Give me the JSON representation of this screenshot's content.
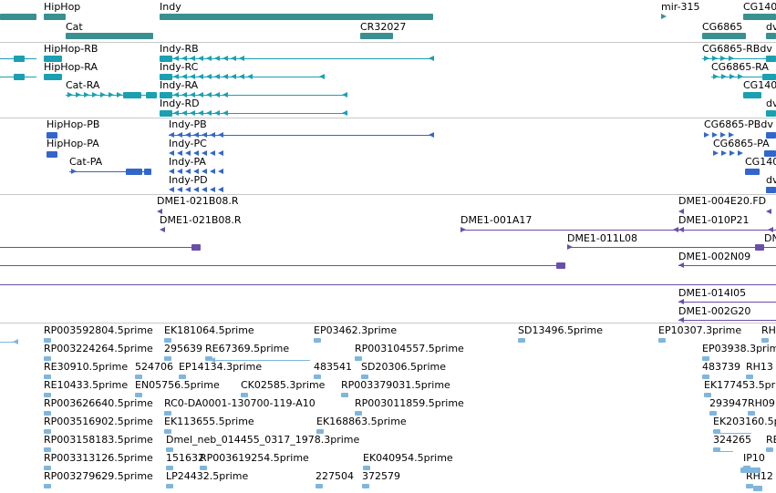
{
  "colors": {
    "gene": "#3a9090",
    "transcript": "#1aa0b0",
    "protein": "#3366cc",
    "clone": "#6a4fa8",
    "est": "#7fb6dc",
    "separator": "#c8c8c8"
  },
  "gene_track": {
    "labels": [
      {
        "id": "hiphop",
        "text": "HipHop"
      },
      {
        "id": "cat",
        "text": "Cat"
      },
      {
        "id": "indy",
        "text": "Indy"
      },
      {
        "id": "cr32027",
        "text": "CR32027"
      },
      {
        "id": "mir315",
        "text": "mir-315"
      },
      {
        "id": "cg6865",
        "text": "CG6865"
      },
      {
        "id": "cg140a",
        "text": "CG140"
      },
      {
        "id": "dv",
        "text": "dv"
      }
    ]
  },
  "transcript_track": {
    "labels": [
      {
        "id": "hiphop_rb",
        "text": "HipHop-RB"
      },
      {
        "id": "hiphop_ra",
        "text": "HipHop-RA"
      },
      {
        "id": "cat_ra",
        "text": "Cat-RA"
      },
      {
        "id": "indy_rb",
        "text": "Indy-RB"
      },
      {
        "id": "indy_rc",
        "text": "Indy-RC"
      },
      {
        "id": "indy_ra",
        "text": "Indy-RA"
      },
      {
        "id": "indy_rd",
        "text": "Indy-RD"
      },
      {
        "id": "cg6865_rb",
        "text": "CG6865-RBdv"
      },
      {
        "id": "cg6865_ra",
        "text": "CG6865-RA"
      },
      {
        "id": "cg140b",
        "text": "CG140"
      },
      {
        "id": "dv2",
        "text": "dv"
      }
    ]
  },
  "protein_track": {
    "labels": [
      {
        "id": "hiphop_pb",
        "text": "HipHop-PB"
      },
      {
        "id": "hiphop_pa",
        "text": "HipHop-PA"
      },
      {
        "id": "cat_pa",
        "text": "Cat-PA"
      },
      {
        "id": "indy_pb",
        "text": "Indy-PB"
      },
      {
        "id": "indy_pc",
        "text": "Indy-PC"
      },
      {
        "id": "indy_pa",
        "text": "Indy-PA"
      },
      {
        "id": "indy_pd",
        "text": "Indy-PD"
      },
      {
        "id": "cg6865_pb",
        "text": "CG6865-PBdv"
      },
      {
        "id": "cg6865_pa",
        "text": "CG6865-PA"
      },
      {
        "id": "cg140c",
        "text": "CG140"
      },
      {
        "id": "dv3",
        "text": "dv"
      }
    ]
  },
  "clone_track": {
    "labels": [
      {
        "id": "c1",
        "text": "DME1-021B08.R"
      },
      {
        "id": "c2",
        "text": "DME1-021B08.R"
      },
      {
        "id": "c3",
        "text": "DME1-001A17"
      },
      {
        "id": "c4",
        "text": "DME1-004E20.FD"
      },
      {
        "id": "c5",
        "text": "DME1-010P21"
      },
      {
        "id": "c6",
        "text": "DME1-011L08"
      },
      {
        "id": "c7",
        "text": "DN"
      },
      {
        "id": "c8",
        "text": "DME1-002N09"
      },
      {
        "id": "c9",
        "text": "DME1-014I05"
      },
      {
        "id": "c10",
        "text": "DME1-002G20"
      }
    ]
  },
  "est_track": {
    "labels": [
      {
        "id": "e1",
        "text": "RP003592804.5prime"
      },
      {
        "id": "e2",
        "text": "EK181064.5prime"
      },
      {
        "id": "e3",
        "text": "EP03462.3prime"
      },
      {
        "id": "e4",
        "text": "SD13496.5prime"
      },
      {
        "id": "e5",
        "text": "EP10307.3prime"
      },
      {
        "id": "e6",
        "text": "RH17"
      },
      {
        "id": "e7",
        "text": "RP003224264.5prime"
      },
      {
        "id": "e8",
        "text": "295639"
      },
      {
        "id": "e9",
        "text": "RE67369.5prime"
      },
      {
        "id": "e10",
        "text": "RP003104557.5prime"
      },
      {
        "id": "e11",
        "text": "EP03938.3prime"
      },
      {
        "id": "e12",
        "text": "RE30910.5prime"
      },
      {
        "id": "e13",
        "text": "524706"
      },
      {
        "id": "e14",
        "text": "EP14134.3prime"
      },
      {
        "id": "e15",
        "text": "483541"
      },
      {
        "id": "e16",
        "text": "SD20306.5prime"
      },
      {
        "id": "e17",
        "text": "483739"
      },
      {
        "id": "e18",
        "text": "RH13"
      },
      {
        "id": "e19",
        "text": "RE10433.5prime"
      },
      {
        "id": "e20",
        "text": "EN05756.5prime"
      },
      {
        "id": "e21",
        "text": "CK02585.3prime"
      },
      {
        "id": "e22",
        "text": "RP003379031.5prime"
      },
      {
        "id": "e23",
        "text": "EK177453.5prime"
      },
      {
        "id": "e24",
        "text": "RP003626640.5prime"
      },
      {
        "id": "e25",
        "text": "RC0-DA0001-130700-119-A10"
      },
      {
        "id": "e26",
        "text": "RP003011859.5prime"
      },
      {
        "id": "e27",
        "text": "293947"
      },
      {
        "id": "e28",
        "text": "RH09"
      },
      {
        "id": "e29",
        "text": "RP003516902.5prime"
      },
      {
        "id": "e30",
        "text": "EK113655.5prime"
      },
      {
        "id": "e31",
        "text": "EK168863.5prime"
      },
      {
        "id": "e32",
        "text": "EK203160.5prime"
      },
      {
        "id": "e33",
        "text": "RP003158183.5prime"
      },
      {
        "id": "e34",
        "text": "Dmel_neb_014455_0317_1978.3prime"
      },
      {
        "id": "e35",
        "text": "324265"
      },
      {
        "id": "e36",
        "text": "RE"
      },
      {
        "id": "e37",
        "text": "RP003313126.5prime"
      },
      {
        "id": "e38",
        "text": "151632"
      },
      {
        "id": "e39",
        "text": "RP003619254.5prime"
      },
      {
        "id": "e40",
        "text": "EK040954.5prime"
      },
      {
        "id": "e41",
        "text": "IP10"
      },
      {
        "id": "e42",
        "text": "RP003279629.5prime"
      },
      {
        "id": "e43",
        "text": "LP24432.5prime"
      },
      {
        "id": "e44",
        "text": "227504"
      },
      {
        "id": "e45",
        "text": "372579"
      },
      {
        "id": "e46",
        "text": "RH12"
      }
    ]
  }
}
